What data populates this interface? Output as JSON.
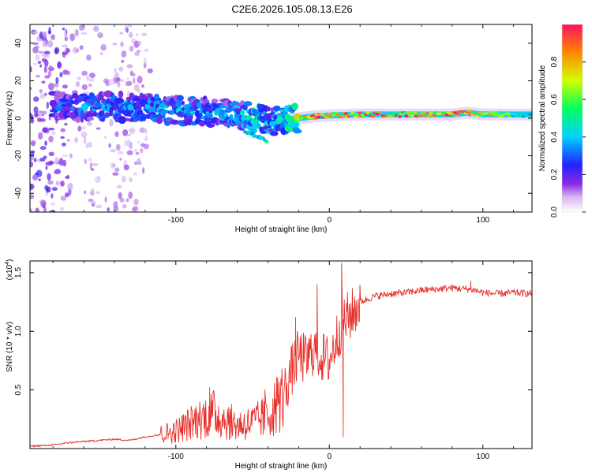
{
  "title": "C2E6.2026.105.08.13.E26",
  "chart_data": [
    {
      "type": "heatmap",
      "name": "spectrogram",
      "xlabel": "Height of straight line (km)",
      "ylabel": "Frequency (Hz)",
      "xlim": [
        -195,
        132
      ],
      "ylim": [
        -50,
        50
      ],
      "xticks": [
        -100,
        0,
        100
      ],
      "yticks": [
        -40,
        -20,
        0,
        20,
        40
      ],
      "xtick_labels": [
        "-100",
        "0",
        "100"
      ],
      "ytick_labels": [
        "-40",
        "-20",
        "0",
        "20",
        "40"
      ],
      "colorbar": {
        "label": "Normalized spectral amplitude",
        "range": [
          0,
          1
        ],
        "ticks": [
          0.0,
          0.2,
          0.4,
          0.6,
          0.8
        ],
        "tick_labels": [
          "0.0",
          "0.2",
          "0.4",
          "0.6",
          "0.8"
        ]
      },
      "ridge": {
        "x": [
          -190,
          -160,
          -130,
          -110,
          -90,
          -70,
          -55,
          -45,
          -38,
          -30,
          -20,
          -10,
          0,
          20,
          50,
          80,
          90,
          100,
          110,
          132
        ],
        "freq": [
          7,
          6,
          6,
          5,
          4,
          3,
          1,
          0,
          -2,
          -1,
          0,
          1,
          1.5,
          2,
          2,
          2,
          3,
          2,
          2,
          2
        ],
        "amplitude": [
          0.3,
          0.35,
          0.4,
          0.4,
          0.4,
          0.4,
          0.45,
          0.5,
          0.45,
          0.5,
          0.7,
          0.9,
          0.85,
          0.9,
          0.95,
          0.95,
          0.85,
          0.9,
          0.7,
          0.5
        ]
      }
    },
    {
      "type": "line",
      "name": "snr",
      "xlabel": "Height of straight line (km)",
      "ylabel": "SNR (10 * v/v)",
      "scale_label": "(x10",
      "scale_exp": "4",
      "xlim": [
        -195,
        132
      ],
      "ylim": [
        0,
        1.6
      ],
      "xticks": [
        -100,
        0,
        100
      ],
      "yticks": [
        0.5,
        1.0,
        1.5
      ],
      "xtick_labels": [
        "-100",
        "0",
        "100"
      ],
      "ytick_labels": [
        "0.5",
        "1.0",
        "1.5"
      ],
      "series": [
        {
          "name": "SNR",
          "color": "#e8302a",
          "x": [
            -195,
            -180,
            -170,
            -160,
            -150,
            -140,
            -130,
            -120,
            -110,
            -100,
            -90,
            -80,
            -75,
            -70,
            -60,
            -50,
            -40,
            -30,
            -25,
            -20,
            -15,
            -10,
            -5,
            0,
            5,
            8,
            10,
            15,
            20,
            30,
            40,
            50,
            60,
            70,
            80,
            90,
            95,
            100,
            110,
            120,
            132
          ],
          "y": [
            0.02,
            0.03,
            0.05,
            0.06,
            0.07,
            0.08,
            0.07,
            0.1,
            0.12,
            0.15,
            0.22,
            0.28,
            0.3,
            0.26,
            0.2,
            0.22,
            0.28,
            0.45,
            0.65,
            0.8,
            0.75,
            0.85,
            0.78,
            0.75,
            0.95,
            1.05,
            1.1,
            1.15,
            1.25,
            1.3,
            1.32,
            1.33,
            1.35,
            1.36,
            1.37,
            1.36,
            1.35,
            1.33,
            1.32,
            1.33,
            1.32
          ]
        }
      ],
      "spikes": [
        {
          "x": -78,
          "y": 0.52
        },
        {
          "x": -42,
          "y": 0.5
        },
        {
          "x": -22,
          "y": 1.12
        },
        {
          "x": -8,
          "y": 1.4
        },
        {
          "x": 8,
          "y": 1.58
        },
        {
          "x": 9,
          "y": 0.1
        },
        {
          "x": 92,
          "y": 1.43
        }
      ]
    }
  ]
}
